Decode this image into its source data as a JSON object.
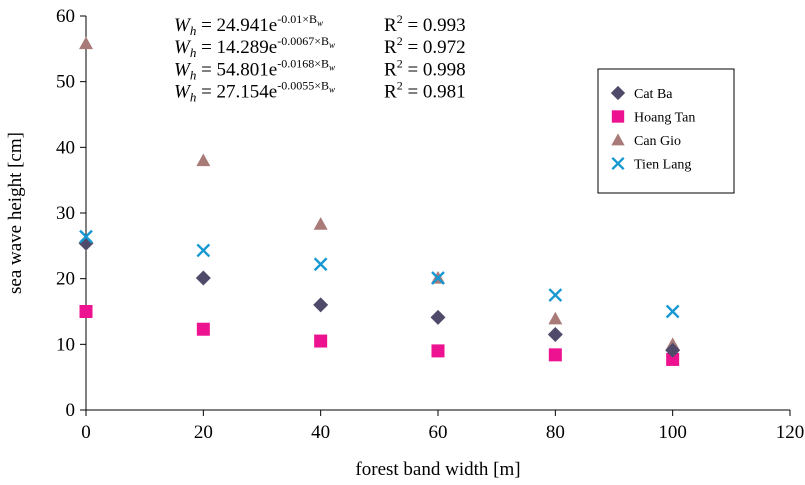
{
  "chart_data": {
    "type": "scatter",
    "title": "",
    "xlabel": "forest band width [m]",
    "ylabel": "sea wave height [cm]",
    "xlim": [
      0,
      120
    ],
    "ylim": [
      0,
      60
    ],
    "xticks": [
      0,
      20,
      40,
      60,
      80,
      100,
      120
    ],
    "yticks": [
      0,
      10,
      20,
      30,
      40,
      50,
      60
    ],
    "grid": false,
    "legend_position": "right",
    "x": [
      0,
      20,
      40,
      60,
      80,
      100
    ],
    "series": [
      {
        "name": "Cat Ba",
        "marker": "diamond",
        "color": "#4f4a6a",
        "values": [
          25.4,
          20.1,
          16.0,
          14.1,
          11.5,
          9.1
        ]
      },
      {
        "name": "Hoang Tan",
        "marker": "square",
        "color": "#ec1290",
        "values": [
          15.0,
          12.3,
          10.5,
          9.0,
          8.4,
          7.7
        ]
      },
      {
        "name": "Can Gio",
        "marker": "triangle",
        "color": "#a97b78",
        "values": [
          55.8,
          38.0,
          28.3,
          20.1,
          13.9,
          10.0
        ]
      },
      {
        "name": "Tien Lang",
        "marker": "x",
        "color": "#1798d3",
        "values": [
          26.4,
          24.3,
          22.2,
          20.1,
          17.5,
          15.0
        ]
      }
    ],
    "equations": [
      {
        "lhs": "W",
        "lhs_sub": "h",
        "rhs": " = 24.941e",
        "exp": "-0.01×B",
        "exp_sub": "w",
        "r2_prefix": "R",
        "r2_sup": "2",
        "r2_value": " = 0.993"
      },
      {
        "lhs": "W",
        "lhs_sub": "h",
        "rhs": " = 14.289e",
        "exp": "-0.0067×B",
        "exp_sub": "w",
        "r2_prefix": "R",
        "r2_sup": "2",
        "r2_value": " = 0.972"
      },
      {
        "lhs": "W",
        "lhs_sub": "h",
        "rhs": " = 54.801e",
        "exp": "-0.0168×B",
        "exp_sub": "w",
        "r2_prefix": "R",
        "r2_sup": "2",
        "r2_value": " = 0.998"
      },
      {
        "lhs": "W",
        "lhs_sub": "h",
        "rhs": " = 27.154e",
        "exp": "-0.0055×B",
        "exp_sub": "w",
        "r2_prefix": "R",
        "r2_sup": "2",
        "r2_value": " = 0.981"
      }
    ]
  }
}
